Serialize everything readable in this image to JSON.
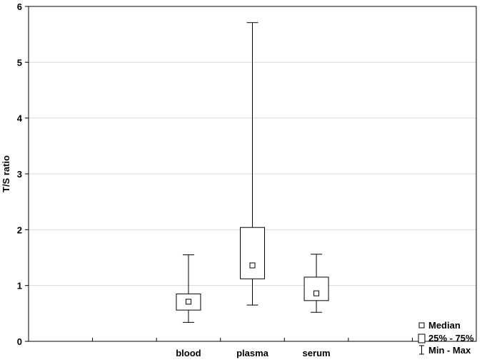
{
  "chart_data": {
    "type": "box",
    "title": "",
    "xlabel": "",
    "ylabel": "T/S ratio",
    "ylim": [
      0,
      6
    ],
    "yticks": [
      "0",
      "1",
      "2",
      "3",
      "4",
      "5",
      "6"
    ],
    "grid": "horizontal",
    "legend_position": "bottom-right",
    "categories": [
      "blood",
      "plasma",
      "serum"
    ],
    "boxes": [
      {
        "category": "blood",
        "min": 0.34,
        "q1": 0.56,
        "median": 0.71,
        "q3": 0.85,
        "max": 1.55
      },
      {
        "category": "plasma",
        "min": 0.65,
        "q1": 1.12,
        "median": 1.36,
        "q3": 2.04,
        "max": 5.71
      },
      {
        "category": "serum",
        "min": 0.52,
        "q1": 0.73,
        "median": 0.86,
        "q3": 1.15,
        "max": 1.56
      }
    ],
    "legend": [
      {
        "symbol": "median-square",
        "label": "Median"
      },
      {
        "symbol": "box",
        "label": "25% - 75%"
      },
      {
        "symbol": "whisker",
        "label": "Min - Max"
      }
    ]
  }
}
